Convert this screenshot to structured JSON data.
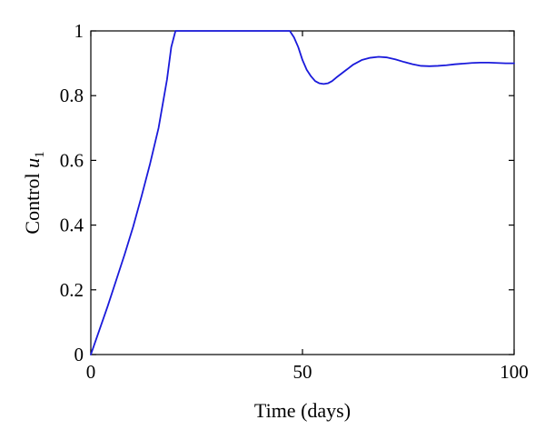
{
  "chart_data": {
    "type": "line",
    "title": "",
    "xlabel": "Time (days)",
    "ylabel_text": "Control ",
    "ylabel_var": "u",
    "ylabel_sub": "1",
    "xlim": [
      0,
      100
    ],
    "ylim": [
      0,
      1
    ],
    "xticks": [
      0,
      50,
      100
    ],
    "xtick_labels": [
      "0",
      "50",
      "100"
    ],
    "yticks": [
      0,
      0.2,
      0.4,
      0.6,
      0.8,
      1
    ],
    "ytick_labels": [
      "0",
      "0.2",
      "0.4",
      "0.6",
      "0.8",
      "1"
    ],
    "grid": false,
    "legend": "none",
    "line_color": "#1a1adb",
    "series": [
      {
        "x": [
          0,
          2,
          4,
          6,
          8,
          10,
          12,
          14,
          16,
          18,
          19,
          20,
          25,
          30,
          35,
          40,
          45,
          47,
          48,
          49,
          50,
          51,
          52,
          53,
          54,
          55,
          56,
          57,
          58,
          60,
          62,
          64,
          66,
          68,
          70,
          72,
          74,
          76,
          78,
          80,
          82,
          84,
          86,
          88,
          90,
          92,
          94,
          96,
          98,
          100
        ],
        "y": [
          0,
          0.075,
          0.15,
          0.23,
          0.31,
          0.395,
          0.49,
          0.59,
          0.7,
          0.85,
          0.95,
          1,
          1,
          1,
          1,
          1,
          1,
          1,
          0.98,
          0.95,
          0.91,
          0.88,
          0.86,
          0.845,
          0.838,
          0.836,
          0.838,
          0.845,
          0.856,
          0.876,
          0.896,
          0.91,
          0.917,
          0.92,
          0.918,
          0.912,
          0.904,
          0.897,
          0.892,
          0.891,
          0.892,
          0.894,
          0.897,
          0.899,
          0.901,
          0.902,
          0.902,
          0.901,
          0.9,
          0.9
        ]
      }
    ]
  }
}
